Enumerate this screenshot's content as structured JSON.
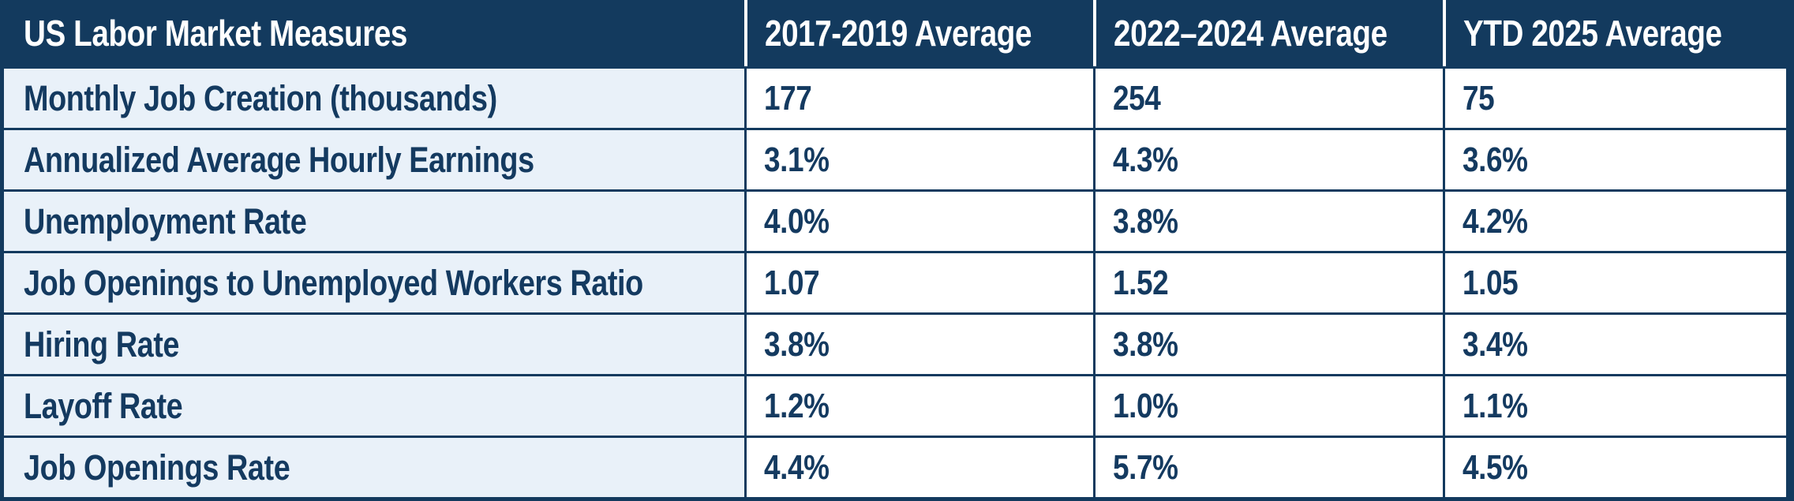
{
  "chart_data": {
    "type": "table",
    "title": "US Labor Market Measures",
    "header": [
      "US Labor Market Measures",
      "2017-2019 Average",
      "2022–2024 Average",
      "YTD 2025 Average"
    ],
    "rows": [
      [
        "Monthly Job Creation (thousands)",
        "177",
        "254",
        "75"
      ],
      [
        "Annualized Average Hourly Earnings",
        "3.1%",
        "4.3%",
        "3.6%"
      ],
      [
        "Unemployment Rate",
        "4.0%",
        "3.8%",
        "4.2%"
      ],
      [
        "Job Openings to Unemployed Workers Ratio",
        "1.07",
        "1.52",
        "1.05"
      ],
      [
        "Hiring Rate",
        "3.8%",
        "3.8%",
        "3.4%"
      ],
      [
        "Layoff Rate",
        "1.2%",
        "1.0%",
        "1.1%"
      ],
      [
        "Job Openings Rate",
        "4.4%",
        "5.7%",
        "4.5%"
      ]
    ]
  },
  "colors": {
    "header_bg": "#133a5e",
    "label_bg": "#e9f1f9",
    "cell_bg": "#ffffff",
    "border": "#133a5e",
    "header_text": "#ffffff",
    "body_text": "#143a60",
    "header_divider": "#ffffff"
  }
}
